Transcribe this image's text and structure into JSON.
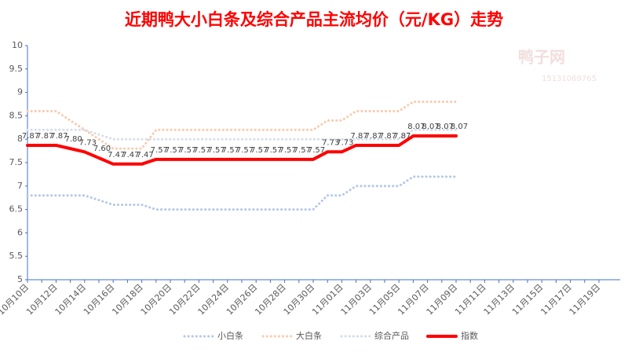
{
  "chart_data": {
    "type": "line",
    "title": "近期鸭大小白条及综合产品主流均价（元/KG）走势",
    "watermark": [
      "鸭子网",
      "15131069765"
    ],
    "categories": [
      "10月10日",
      null,
      "10月12日",
      null,
      "10月14日",
      null,
      "10月16日",
      null,
      "10月18日",
      null,
      "10月20日",
      null,
      "10月22日",
      null,
      "10月24日",
      null,
      "10月26日",
      null,
      "10月28日",
      null,
      "10月30日",
      null,
      "11月01日",
      null,
      "11月03日",
      null,
      "11月05日",
      null,
      "11月07日",
      null,
      "11月09日",
      null,
      "11月11日",
      null,
      "11月13日",
      null,
      "11月15日",
      null,
      "11月17日",
      null,
      "11月19日"
    ],
    "ylim": [
      5,
      10
    ],
    "yticks": [
      5,
      5.5,
      6,
      6.5,
      7,
      7.5,
      8,
      8.5,
      9,
      9.5,
      10
    ],
    "grid": false,
    "legend": "bottom",
    "series": [
      {
        "name": "小白条",
        "color": "#b4c7e7",
        "style": "dotted",
        "values": [
          6.8,
          6.8,
          6.8,
          6.8,
          6.8,
          6.7,
          6.6,
          6.6,
          6.6,
          6.5,
          6.5,
          6.5,
          6.5,
          6.5,
          6.5,
          6.5,
          6.5,
          6.5,
          6.5,
          6.5,
          6.5,
          6.8,
          6.8,
          7.0,
          7.0,
          7.0,
          7.0,
          7.2,
          7.2,
          7.2,
          7.2,
          null,
          null,
          null,
          null,
          null,
          null,
          null,
          null,
          null,
          null
        ]
      },
      {
        "name": "大白条",
        "color": "#f8cbad",
        "style": "dotted",
        "values": [
          8.6,
          8.6,
          8.6,
          8.4,
          8.2,
          8.0,
          7.8,
          7.8,
          7.8,
          8.2,
          8.2,
          8.2,
          8.2,
          8.2,
          8.2,
          8.2,
          8.2,
          8.2,
          8.2,
          8.2,
          8.2,
          8.4,
          8.4,
          8.6,
          8.6,
          8.6,
          8.6,
          8.8,
          8.8,
          8.8,
          8.8,
          null,
          null,
          null,
          null,
          null,
          null,
          null,
          null,
          null,
          null
        ]
      },
      {
        "name": "综合产品",
        "color": "#d6dcec",
        "style": "dotted",
        "values": [
          8.2,
          8.2,
          8.2,
          8.2,
          8.2,
          8.1,
          8.0,
          8.0,
          8.0,
          8.0,
          8.0,
          8.0,
          8.0,
          8.0,
          8.0,
          8.0,
          8.0,
          8.0,
          8.0,
          8.0,
          8.0,
          8.0,
          8.0,
          8.0,
          8.0,
          8.0,
          8.0,
          8.2,
          8.2,
          8.2,
          8.2,
          null,
          null,
          null,
          null,
          null,
          null,
          null,
          null,
          null,
          null
        ]
      },
      {
        "name": "指数",
        "color": "#ff0000",
        "style": "solid",
        "values": [
          7.87,
          7.87,
          7.87,
          7.8,
          7.73,
          7.6,
          7.47,
          7.47,
          7.47,
          7.57,
          7.57,
          7.57,
          7.57,
          7.57,
          7.57,
          7.57,
          7.57,
          7.57,
          7.57,
          7.57,
          7.57,
          7.73,
          7.73,
          7.87,
          7.87,
          7.87,
          7.87,
          8.07,
          8.07,
          8.07,
          8.07,
          null,
          null,
          null,
          null,
          null,
          null,
          null,
          null,
          null,
          null
        ],
        "value_labels": [
          "7.87",
          "7.87",
          "7.87",
          "7.80",
          "7.73",
          "7.60",
          "7.47",
          "7.47",
          "7.47",
          "7.57",
          "7.57",
          "7.57",
          "7.57",
          "7.57",
          "7.57",
          "7.57",
          "7.57",
          "7.57",
          "7.57",
          "7.57",
          "7.57",
          "7.73",
          "7.73",
          "7.87",
          "7.87",
          "7.87",
          "7.87",
          "8.07",
          "8.07",
          "8.07",
          "8.07",
          null,
          null,
          null,
          null,
          null,
          null,
          null,
          null,
          null,
          null
        ]
      }
    ]
  }
}
